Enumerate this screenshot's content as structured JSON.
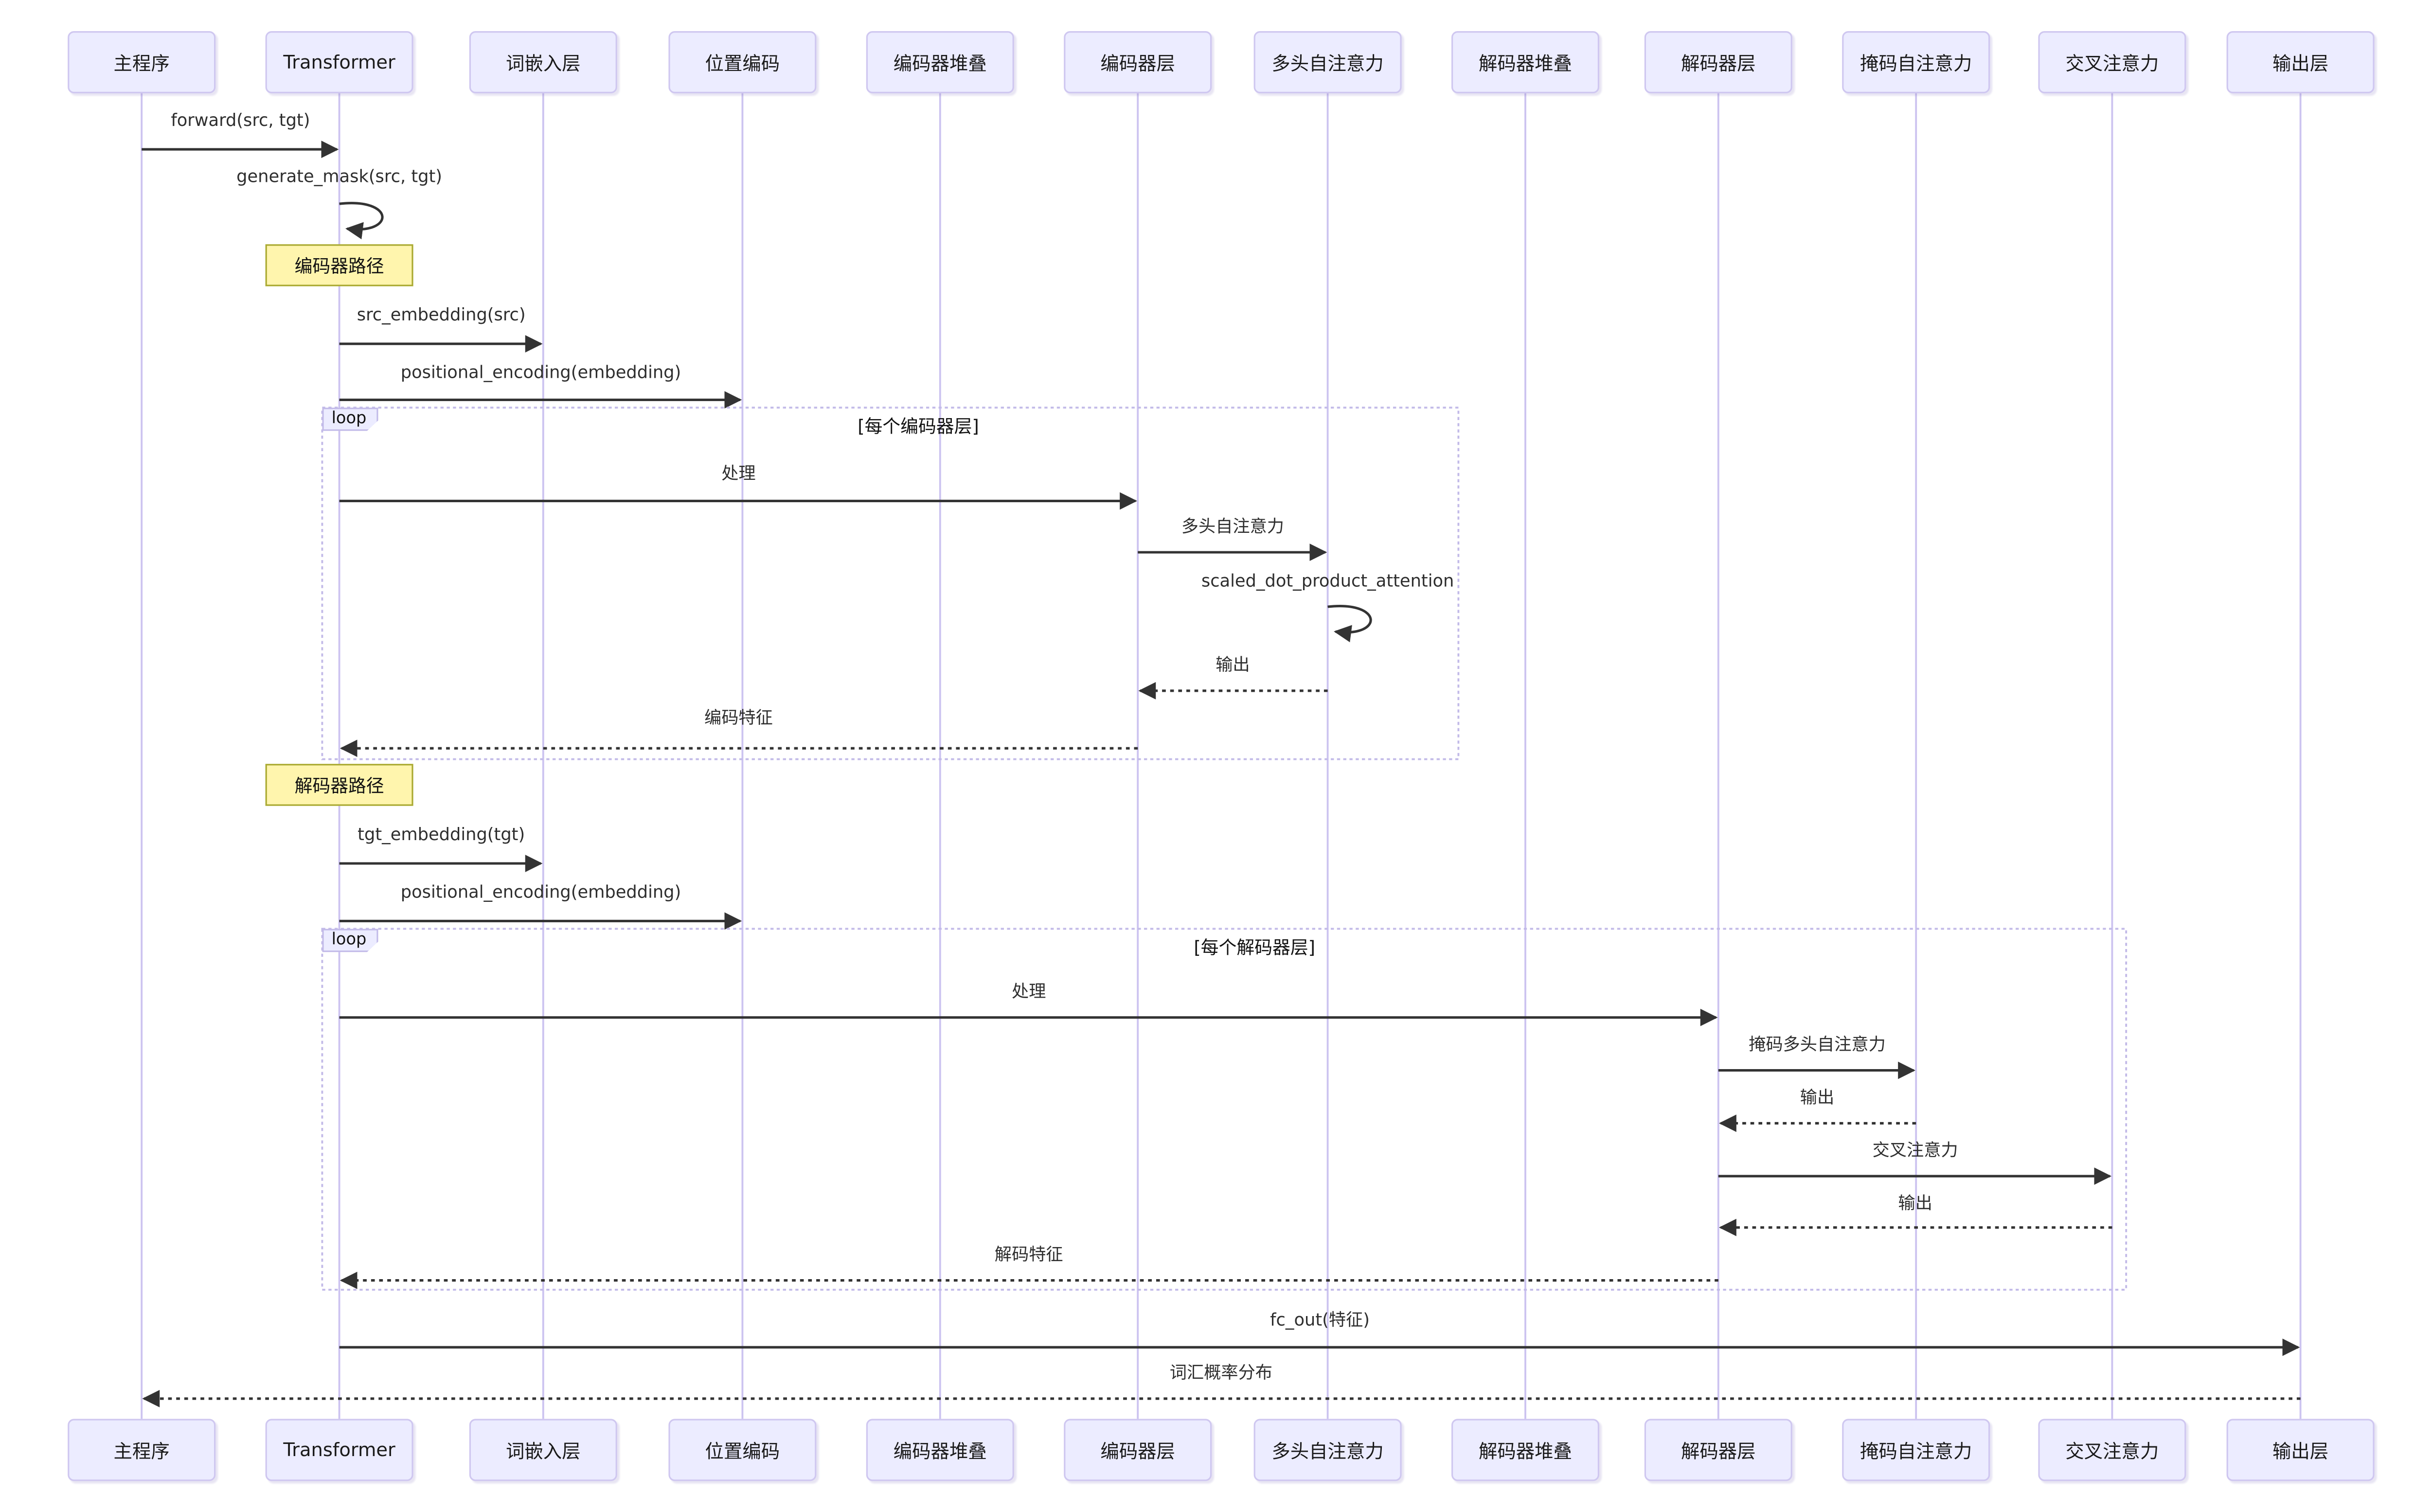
{
  "diagram_type": "sequence-diagram",
  "participants": [
    {
      "id": "main-program",
      "label": "主程序"
    },
    {
      "id": "transformer",
      "label": "Transformer"
    },
    {
      "id": "word-embedding-layer",
      "label": "词嵌入层"
    },
    {
      "id": "positional-encoding",
      "label": "位置编码"
    },
    {
      "id": "encoder-stack",
      "label": "编码器堆叠"
    },
    {
      "id": "encoder-layer",
      "label": "编码器层"
    },
    {
      "id": "multi-head-self-attention",
      "label": "多头自注意力"
    },
    {
      "id": "decoder-stack",
      "label": "解码器堆叠"
    },
    {
      "id": "decoder-layer",
      "label": "解码器层"
    },
    {
      "id": "masked-self-attention",
      "label": "掩码自注意力"
    },
    {
      "id": "cross-attention",
      "label": "交叉注意力"
    },
    {
      "id": "output-layer",
      "label": "输出层"
    }
  ],
  "steps": [
    {
      "id": "forward",
      "type": "message",
      "from": 0,
      "to": 1,
      "text": "forward(src, tgt)",
      "line": "solid"
    },
    {
      "id": "generate-mask",
      "type": "self",
      "on": 1,
      "text": "generate_mask(src, tgt)"
    },
    {
      "id": "encoder-path-note",
      "type": "note",
      "over": 1,
      "text": "编码器路径"
    },
    {
      "id": "src-embedding",
      "type": "message",
      "from": 1,
      "to": 2,
      "text": "src_embedding(src)",
      "line": "solid"
    },
    {
      "id": "positional-encoding-src",
      "type": "message",
      "from": 1,
      "to": 3,
      "text": "positional_encoding(embedding)",
      "line": "solid"
    },
    {
      "id": "encoder-loop",
      "type": "loop",
      "label": "loop",
      "condition": "[每个编码器层]"
    },
    {
      "id": "process-encoder",
      "type": "message",
      "from": 1,
      "to": 5,
      "text": "处理",
      "line": "solid"
    },
    {
      "id": "multi-head-attention-call",
      "type": "message",
      "from": 5,
      "to": 6,
      "text": "多头自注意力",
      "line": "solid"
    },
    {
      "id": "scaled-dot-product-attention",
      "type": "self",
      "on": 6,
      "text": "scaled_dot_product_attention"
    },
    {
      "id": "attention-output",
      "type": "message",
      "from": 6,
      "to": 5,
      "text": "输出",
      "line": "dashed"
    },
    {
      "id": "encoded-features",
      "type": "message",
      "from": 5,
      "to": 1,
      "text": "编码特征",
      "line": "dashed"
    },
    {
      "id": "decoder-path-note",
      "type": "note",
      "over": 1,
      "text": "解码器路径"
    },
    {
      "id": "tgt-embedding",
      "type": "message",
      "from": 1,
      "to": 2,
      "text": "tgt_embedding(tgt)",
      "line": "solid"
    },
    {
      "id": "positional-encoding-tgt",
      "type": "message",
      "from": 1,
      "to": 3,
      "text": "positional_encoding(embedding)",
      "line": "solid"
    },
    {
      "id": "decoder-loop",
      "type": "loop",
      "label": "loop",
      "condition": "[每个解码器层]"
    },
    {
      "id": "process-decoder",
      "type": "message",
      "from": 1,
      "to": 8,
      "text": "处理",
      "line": "solid"
    },
    {
      "id": "masked-multi-head-attention-call",
      "type": "message",
      "from": 8,
      "to": 9,
      "text": "掩码多头自注意力",
      "line": "solid"
    },
    {
      "id": "masked-attention-output",
      "type": "message",
      "from": 9,
      "to": 8,
      "text": "输出",
      "line": "dashed"
    },
    {
      "id": "cross-attention-call",
      "type": "message",
      "from": 8,
      "to": 10,
      "text": "交叉注意力",
      "line": "solid"
    },
    {
      "id": "cross-attention-output",
      "type": "message",
      "from": 10,
      "to": 8,
      "text": "输出",
      "line": "dashed"
    },
    {
      "id": "decoded-features",
      "type": "message",
      "from": 8,
      "to": 1,
      "text": "解码特征",
      "line": "dashed"
    },
    {
      "id": "fc-out",
      "type": "message",
      "from": 1,
      "to": 11,
      "text": "fc_out(特征)",
      "line": "solid"
    },
    {
      "id": "vocab-probability-distribution",
      "type": "message",
      "from": 11,
      "to": 0,
      "text": "词汇概率分布",
      "line": "dashed"
    }
  ],
  "colors": {
    "background": "#FFFFFF",
    "actor_fill": "#ECECFF",
    "actor_border": "#CFC7F0",
    "lifeline": "#CCC3F0",
    "frame_border": "#C2BAE8",
    "note_fill": "#FFF5AD",
    "note_border": "#AAAA33",
    "arrow": "#333333",
    "text": "#2E2E2E"
  }
}
